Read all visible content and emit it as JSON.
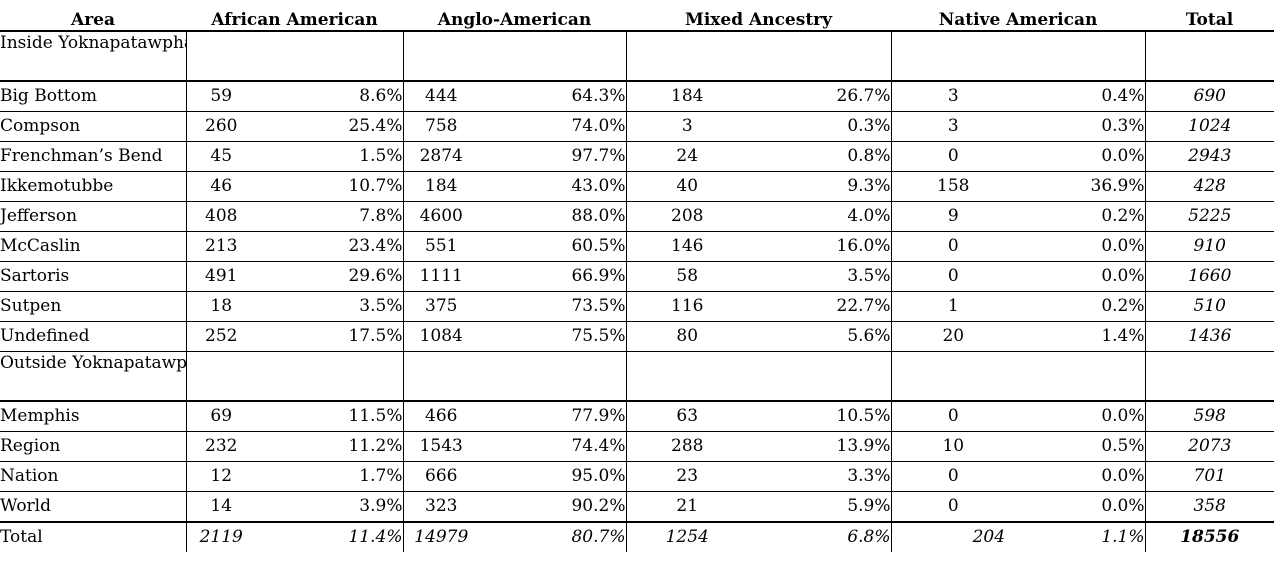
{
  "headers": {
    "area": "Area",
    "african_american": "African American",
    "anglo_american": "Anglo-American",
    "mixed_ancestry": "Mixed Ancestry",
    "native_american": "Native American",
    "total": "Total"
  },
  "sections": [
    {
      "label": "Inside Yoknapatawpha",
      "rows": [
        {
          "area": "Big Bottom",
          "aa_n": "59",
          "aa_p": "8.6%",
          "an_n": "444",
          "an_p": "64.3%",
          "mx_n": "184",
          "mx_p": "26.7%",
          "na_n": "3",
          "na_p": "0.4%",
          "total": "690"
        },
        {
          "area": "Compson",
          "aa_n": "260",
          "aa_p": "25.4%",
          "an_n": "758",
          "an_p": "74.0%",
          "mx_n": "3",
          "mx_p": "0.3%",
          "na_n": "3",
          "na_p": "0.3%",
          "total": "1024"
        },
        {
          "area": "Frenchman’s Bend",
          "aa_n": "45",
          "aa_p": "1.5%",
          "an_n": "2874",
          "an_p": "97.7%",
          "mx_n": "24",
          "mx_p": "0.8%",
          "na_n": "0",
          "na_p": "0.0%",
          "total": "2943"
        },
        {
          "area": "Ikkemotubbe",
          "aa_n": "46",
          "aa_p": "10.7%",
          "an_n": "184",
          "an_p": "43.0%",
          "mx_n": "40",
          "mx_p": "9.3%",
          "na_n": "158",
          "na_p": "36.9%",
          "total": "428"
        },
        {
          "area": "Jefferson",
          "aa_n": "408",
          "aa_p": "7.8%",
          "an_n": "4600",
          "an_p": "88.0%",
          "mx_n": "208",
          "mx_p": "4.0%",
          "na_n": "9",
          "na_p": "0.2%",
          "total": "5225"
        },
        {
          "area": "McCaslin",
          "aa_n": "213",
          "aa_p": "23.4%",
          "an_n": "551",
          "an_p": "60.5%",
          "mx_n": "146",
          "mx_p": "16.0%",
          "na_n": "0",
          "na_p": "0.0%",
          "total": "910"
        },
        {
          "area": "Sartoris",
          "aa_n": "491",
          "aa_p": "29.6%",
          "an_n": "1111",
          "an_p": "66.9%",
          "mx_n": "58",
          "mx_p": "3.5%",
          "na_n": "0",
          "na_p": "0.0%",
          "total": "1660"
        },
        {
          "area": "Sutpen",
          "aa_n": "18",
          "aa_p": "3.5%",
          "an_n": "375",
          "an_p": "73.5%",
          "mx_n": "116",
          "mx_p": "22.7%",
          "na_n": "1",
          "na_p": "0.2%",
          "total": "510"
        },
        {
          "area": "Undefined",
          "aa_n": "252",
          "aa_p": "17.5%",
          "an_n": "1084",
          "an_p": "75.5%",
          "mx_n": "80",
          "mx_p": "5.6%",
          "na_n": "20",
          "na_p": "1.4%",
          "total": "1436"
        }
      ]
    },
    {
      "label": "Outside Yoknapatawpha",
      "rows": [
        {
          "area": "Memphis",
          "aa_n": "69",
          "aa_p": "11.5%",
          "an_n": "466",
          "an_p": "77.9%",
          "mx_n": "63",
          "mx_p": "10.5%",
          "na_n": "0",
          "na_p": "0.0%",
          "total": "598"
        },
        {
          "area": "Region",
          "aa_n": "232",
          "aa_p": "11.2%",
          "an_n": "1543",
          "an_p": "74.4%",
          "mx_n": "288",
          "mx_p": "13.9%",
          "na_n": "10",
          "na_p": "0.5%",
          "total": "2073"
        },
        {
          "area": "Nation",
          "aa_n": "12",
          "aa_p": "1.7%",
          "an_n": "666",
          "an_p": "95.0%",
          "mx_n": "23",
          "mx_p": "3.3%",
          "na_n": "0",
          "na_p": "0.0%",
          "total": "701"
        },
        {
          "area": "World",
          "aa_n": "14",
          "aa_p": "3.9%",
          "an_n": "323",
          "an_p": "90.2%",
          "mx_n": "21",
          "mx_p": "5.9%",
          "na_n": "0",
          "na_p": "0.0%",
          "total": "358"
        }
      ]
    }
  ],
  "total_row": {
    "area": "Total",
    "aa_n": "2119",
    "aa_p": "11.4%",
    "an_n": "14979",
    "an_p": "80.7%",
    "mx_n": "1254",
    "mx_p": "6.8%",
    "na_n": "204",
    "na_p": "1.1%",
    "total": "18556"
  }
}
